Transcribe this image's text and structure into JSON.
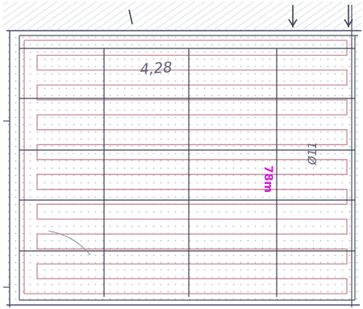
{
  "drawing": {
    "room_dimension_label": "4,28",
    "pipe_length_label": "78m",
    "side_mark_label": "Ø11",
    "colors": {
      "background": "#ffffff",
      "dot_grid": "#b8bccb",
      "room_outline": "#4a4f63",
      "grid_lines": "#3d4154",
      "pipe_loop": "#c98a96",
      "handwriting": "#5a6071",
      "length_label": "#d01bd6",
      "hatch": "#8a90a4"
    },
    "icons": {
      "top_marks": "arrow-marker-icon"
    }
  }
}
